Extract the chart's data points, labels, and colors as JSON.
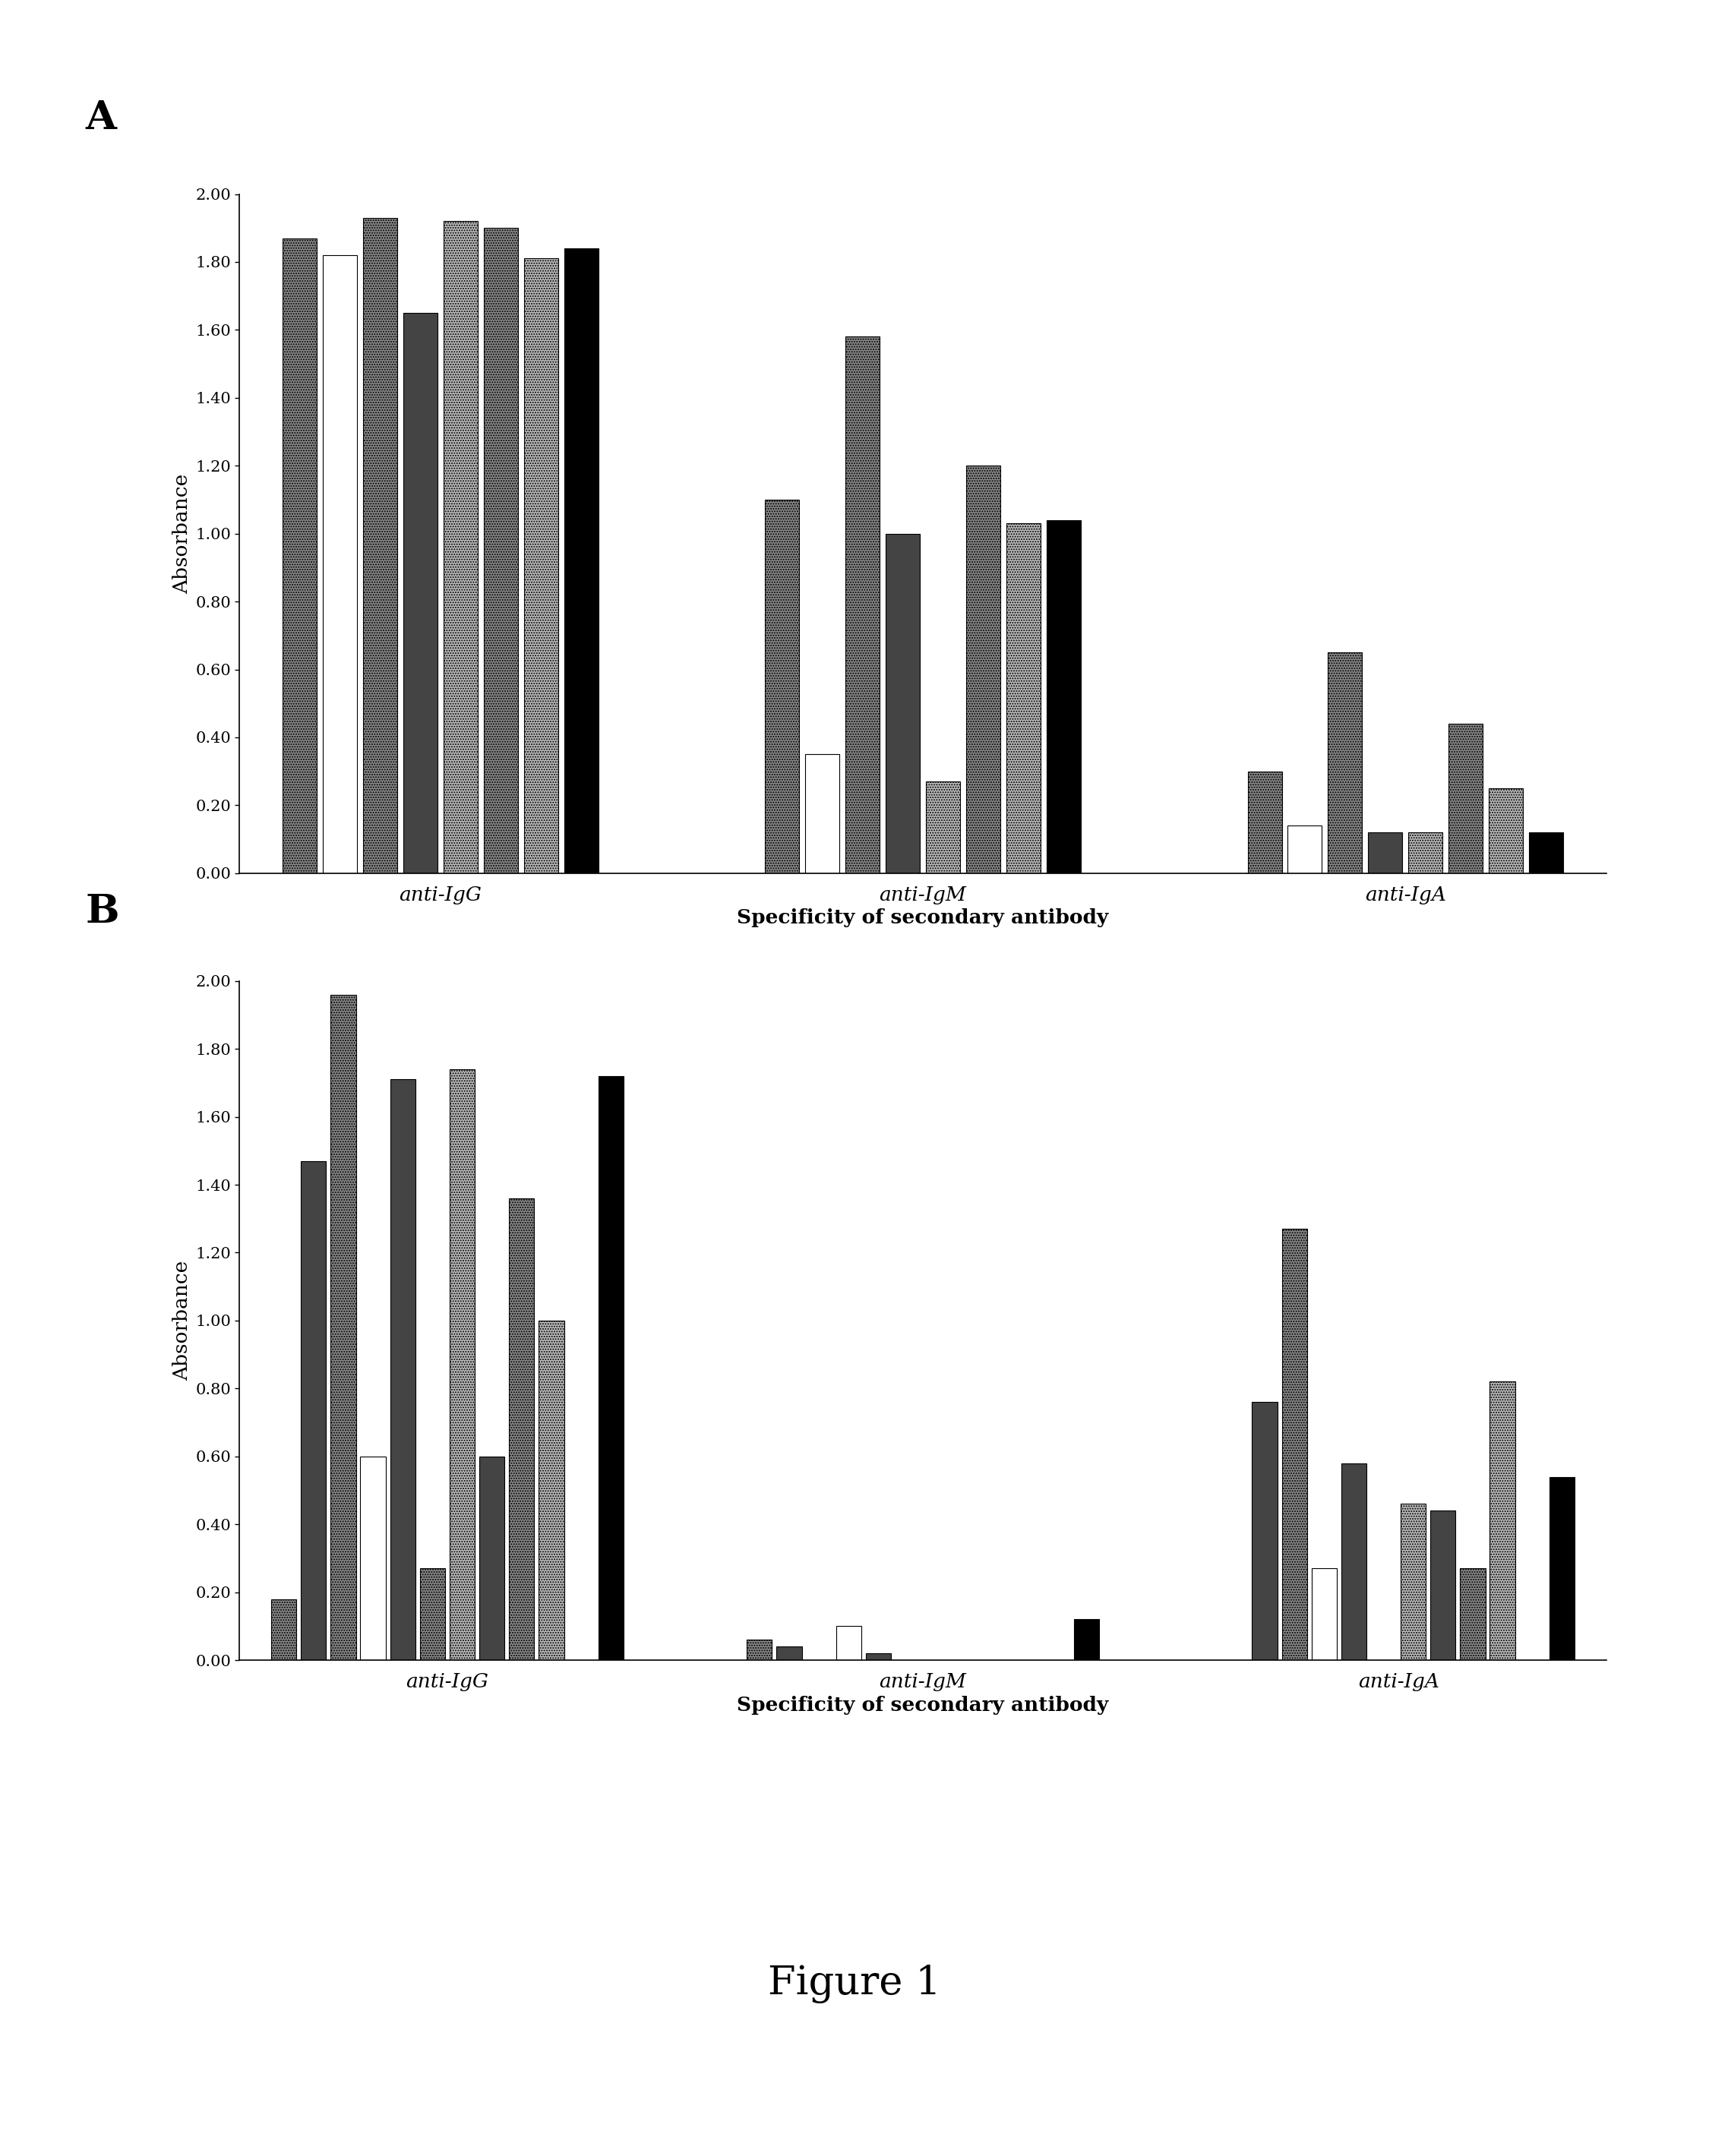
{
  "panel_A": {
    "groups": [
      "anti-IgG",
      "anti-IgM",
      "anti-IgA"
    ],
    "group_data": [
      [
        1.87,
        1.82,
        1.93,
        1.65,
        1.92,
        1.9,
        1.81,
        1.84
      ],
      [
        1.1,
        0.35,
        1.58,
        1.0,
        0.27,
        1.2,
        1.03,
        1.04
      ],
      [
        0.3,
        0.14,
        0.65,
        0.12,
        0.12,
        0.44,
        0.25,
        0.12
      ]
    ]
  },
  "panel_B": {
    "groups": [
      "anti-IgG",
      "anti-IgM",
      "anti-IgA"
    ],
    "group_data": [
      [
        0.18,
        1.47,
        1.96,
        0.6,
        1.71,
        0.27,
        1.74,
        0.6,
        1.36,
        1.0,
        0.0,
        1.72
      ],
      [
        0.06,
        0.04,
        0.0,
        0.1,
        0.02,
        0.0,
        0.0,
        0.0,
        0.0,
        0.0,
        0.0,
        0.12
      ],
      [
        0.0,
        0.76,
        1.27,
        0.27,
        0.58,
        0.0,
        0.46,
        0.44,
        0.27,
        0.82,
        0.0,
        0.54
      ]
    ]
  },
  "bar_styles": [
    {
      "color": "#888888",
      "hatch": ".....",
      "edgecolor": "black",
      "lw": 0.8
    },
    {
      "color": "white",
      "hatch": "",
      "edgecolor": "black",
      "lw": 0.8
    },
    {
      "color": "#888888",
      "hatch": ".....",
      "edgecolor": "black",
      "lw": 0.8
    },
    {
      "color": "#444444",
      "hatch": "",
      "edgecolor": "black",
      "lw": 0.8
    },
    {
      "color": "#bbbbbb",
      "hatch": ".....",
      "edgecolor": "black",
      "lw": 0.8
    },
    {
      "color": "#888888",
      "hatch": ".....",
      "edgecolor": "black",
      "lw": 0.8
    },
    {
      "color": "#bbbbbb",
      "hatch": ".....",
      "edgecolor": "black",
      "lw": 0.8
    },
    {
      "color": "black",
      "hatch": "",
      "edgecolor": "black",
      "lw": 0.8
    }
  ],
  "bar_styles_B": [
    {
      "color": "#888888",
      "hatch": ".....",
      "edgecolor": "black",
      "lw": 0.8
    },
    {
      "color": "#444444",
      "hatch": "",
      "edgecolor": "black",
      "lw": 0.8
    },
    {
      "color": "#888888",
      "hatch": ".....",
      "edgecolor": "black",
      "lw": 0.8
    },
    {
      "color": "white",
      "hatch": "",
      "edgecolor": "black",
      "lw": 0.8
    },
    {
      "color": "#444444",
      "hatch": "",
      "edgecolor": "black",
      "lw": 0.8
    },
    {
      "color": "#888888",
      "hatch": ".....",
      "edgecolor": "black",
      "lw": 0.8
    },
    {
      "color": "#bbbbbb",
      "hatch": ".....",
      "edgecolor": "black",
      "lw": 0.8
    },
    {
      "color": "#444444",
      "hatch": "",
      "edgecolor": "black",
      "lw": 0.8
    },
    {
      "color": "#888888",
      "hatch": ".....",
      "edgecolor": "black",
      "lw": 0.8
    },
    {
      "color": "#bbbbbb",
      "hatch": ".....",
      "edgecolor": "black",
      "lw": 0.8
    },
    {
      "color": "white",
      "hatch": "",
      "edgecolor": "black",
      "lw": 0.8
    },
    {
      "color": "black",
      "hatch": "",
      "edgecolor": "black",
      "lw": 0.8
    }
  ],
  "ylabel": "Absorbance",
  "xlabel": "Specificity of secondary antibody",
  "ylim": [
    0.0,
    2.0
  ],
  "yticks": [
    0.0,
    0.2,
    0.4,
    0.6,
    0.8,
    1.0,
    1.2,
    1.4,
    1.6,
    1.8,
    2.0
  ],
  "figure_label": "Figure 1",
  "panel_A_label": "A",
  "panel_B_label": "B"
}
